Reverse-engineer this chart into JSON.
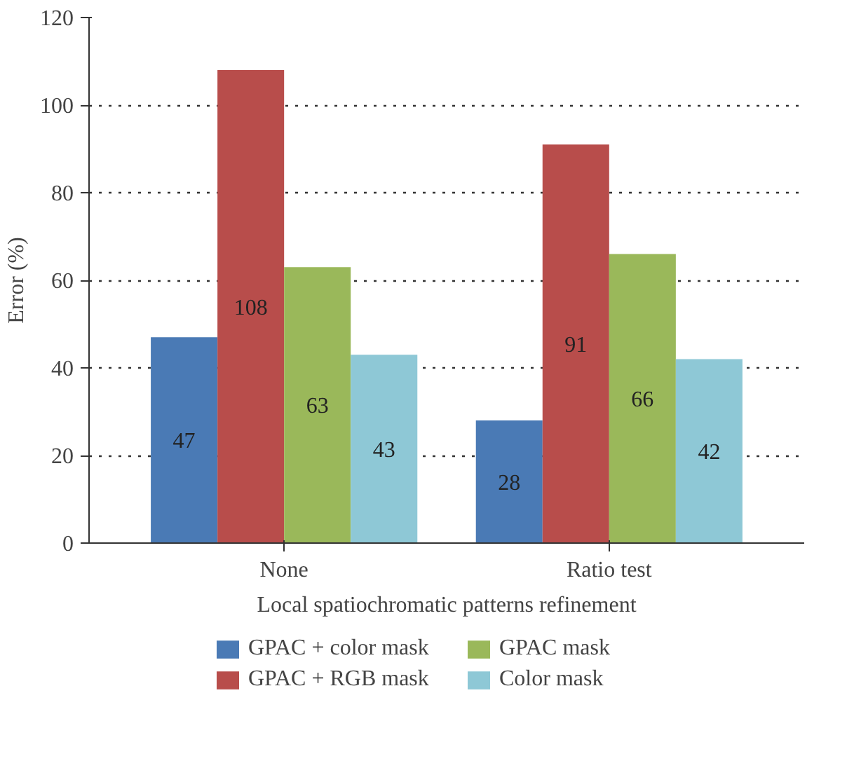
{
  "chart_data": {
    "type": "bar",
    "xlabel": "Local spatiochromatic patterns refinement",
    "ylabel": "Error (%)",
    "categories": [
      "None",
      "Ratio test"
    ],
    "series": [
      {
        "name": "GPAC + color mask",
        "color": "#4a7ab5",
        "values": [
          47,
          28
        ]
      },
      {
        "name": "GPAC + RGB mask",
        "color": "#b84d4b",
        "values": [
          108,
          91
        ]
      },
      {
        "name": "GPAC mask",
        "color": "#9ab85a",
        "values": [
          63,
          66
        ]
      },
      {
        "name": "Color mask",
        "color": "#8ec8d6",
        "values": [
          43,
          42
        ]
      }
    ],
    "ylim": [
      0,
      120
    ],
    "yticks": [
      0,
      20,
      40,
      60,
      80,
      100,
      120
    ],
    "grid": "y",
    "legend": "bottom",
    "data_labels": true
  }
}
